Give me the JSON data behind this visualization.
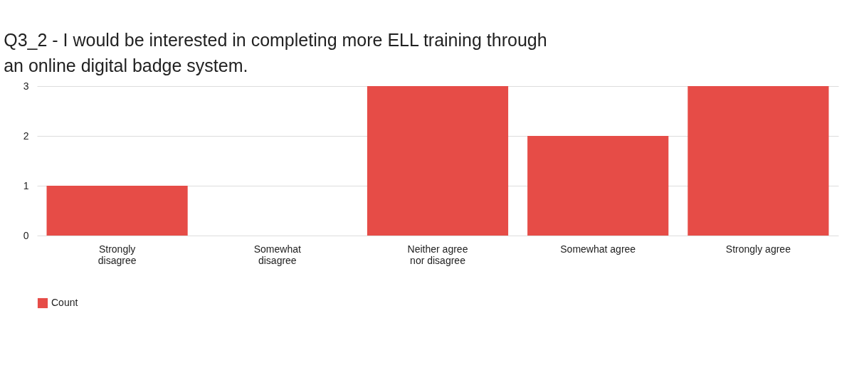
{
  "chart_data": {
    "type": "bar",
    "title": "Q3_2 - I would be interested in completing more ELL training through an online digital badge system.",
    "categories": [
      "Strongly disagree",
      "Somewhat disagree",
      "Neither agree nor disagree",
      "Somewhat agree",
      "Strongly agree"
    ],
    "series": [
      {
        "name": "Count",
        "color": "#e64c47",
        "values": [
          1,
          0,
          3,
          2,
          3
        ]
      }
    ],
    "ylim": [
      0,
      3
    ],
    "yticks": [
      0,
      1,
      2,
      3
    ],
    "grid": "y",
    "legend": "bottom"
  }
}
